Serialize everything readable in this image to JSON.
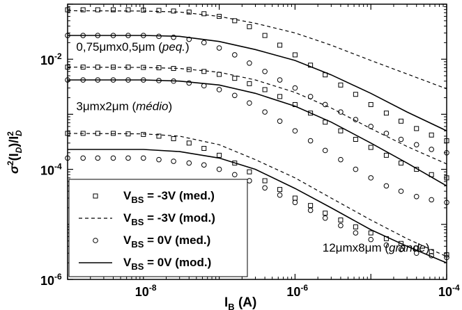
{
  "chart_data": {
    "type": "scatter",
    "xlabel": "I_B (A)",
    "ylabel": "σ²(I_D)/I_D²",
    "x_scale": "log",
    "y_scale": "log",
    "xlim": [
      1e-09,
      0.0001
    ],
    "ylim": [
      1e-06,
      0.1
    ],
    "x_ticks": [
      {
        "value": 1e-08,
        "base": "10",
        "exp": "-8"
      },
      {
        "value": 1e-06,
        "base": "10",
        "exp": "-6"
      },
      {
        "value": 0.0001,
        "base": "10",
        "exp": "-4"
      }
    ],
    "y_ticks": [
      {
        "value": 0.01,
        "base": "10",
        "exp": "-2"
      },
      {
        "value": 0.0001,
        "base": "10",
        "exp": "-4"
      },
      {
        "value": 1e-06,
        "base": "10",
        "exp": "-6"
      }
    ],
    "annotations": [
      {
        "id": "ann-peq",
        "parts": [
          "0,75",
          "μ",
          "mx0,5",
          "μ",
          "m (",
          "peq.",
          ")"
        ],
        "italic_index": 5,
        "x": 1.3e-09,
        "y": 0.0143
      },
      {
        "id": "ann-medio",
        "parts": [
          "3",
          "μ",
          "mx2",
          "μ",
          "m (",
          "médio",
          ")"
        ],
        "italic_index": 5,
        "x": 1.3e-09,
        "y": 0.00118
      },
      {
        "id": "ann-grande",
        "parts": [
          "12",
          "μ",
          "mx8",
          "μ",
          "m (",
          "grande",
          ")"
        ],
        "italic_index": 5,
        "x": 2.3e-06,
        "y": 3.2e-06
      }
    ],
    "legend": {
      "placement": "bottom-left",
      "entries": [
        {
          "marker": "square",
          "line": "none",
          "label_main": "V",
          "label_sub": "BS",
          "label_rest": " = -3V (med.)"
        },
        {
          "marker": "none",
          "line": "dashed",
          "label_main": "V",
          "label_sub": "BS",
          "label_rest": " = -3V (mod.)"
        },
        {
          "marker": "circle",
          "line": "none",
          "label_main": "V",
          "label_sub": "BS",
          "label_rest": " = 0V (med.)"
        },
        {
          "marker": "none",
          "line": "solid",
          "label_main": "V",
          "label_sub": "BS",
          "label_rest": " = 0V (mod.)"
        }
      ]
    },
    "series": [
      {
        "device": "peq",
        "kind": "med",
        "vbs": "-3V",
        "marker": "square",
        "x": [
          1e-09,
          1.6e-09,
          2.5e-09,
          4e-09,
          6.3e-09,
          1e-08,
          1.6e-08,
          2.5e-08,
          4e-08,
          6.3e-08,
          1e-07,
          1.6e-07,
          2.5e-07,
          4e-07,
          6.3e-07,
          1e-06,
          1.6e-06,
          2.5e-06,
          4e-06,
          6.3e-06,
          1e-05,
          1.6e-05,
          2.5e-05,
          4e-05,
          6.3e-05,
          0.0001
        ],
        "y": [
          0.079,
          0.079,
          0.079,
          0.079,
          0.079,
          0.078,
          0.077,
          0.075,
          0.072,
          0.067,
          0.06,
          0.05,
          0.039,
          0.027,
          0.018,
          0.012,
          0.0078,
          0.0052,
          0.0034,
          0.0023,
          0.0015,
          0.00105,
          0.00075,
          0.00055,
          0.00042,
          0.00033
        ]
      },
      {
        "device": "peq",
        "kind": "mod",
        "vbs": "-3V",
        "line": "dashed",
        "x": [
          1e-09,
          1e-08,
          3e-08,
          1e-07,
          3e-07,
          1e-06,
          3e-06,
          1e-05,
          3e-05,
          0.0001
        ],
        "y": [
          0.076,
          0.075,
          0.072,
          0.06,
          0.045,
          0.03,
          0.018,
          0.0095,
          0.0054,
          0.0029
        ]
      },
      {
        "device": "peq",
        "kind": "med",
        "vbs": "0V",
        "marker": "circle",
        "x": [
          1e-09,
          1.6e-09,
          2.5e-09,
          4e-09,
          6.3e-09,
          1e-08,
          1.6e-08,
          2.5e-08,
          4e-08,
          6.3e-08,
          1e-07,
          1.6e-07,
          2.5e-07,
          4e-07,
          6.3e-07,
          1e-06,
          1.6e-06,
          2.5e-06,
          4e-06,
          6.3e-06,
          1e-05,
          1.6e-05,
          2.5e-05,
          4e-05,
          6.3e-05,
          0.0001
        ],
        "y": [
          0.027,
          0.027,
          0.027,
          0.027,
          0.027,
          0.027,
          0.026,
          0.025,
          0.023,
          0.02,
          0.016,
          0.012,
          0.0085,
          0.006,
          0.0042,
          0.003,
          0.0021,
          0.0015,
          0.0011,
          0.0008,
          0.0006,
          0.00045,
          0.00035,
          0.00028,
          0.00023,
          0.0002
        ]
      },
      {
        "device": "peq",
        "kind": "mod",
        "vbs": "0V",
        "line": "solid",
        "x": [
          1e-09,
          1e-08,
          3e-08,
          1e-07,
          3e-07,
          1e-06,
          3e-06,
          1e-05,
          3e-05,
          0.0001
        ],
        "y": [
          0.027,
          0.027,
          0.026,
          0.021,
          0.015,
          0.0095,
          0.0052,
          0.0024,
          0.0011,
          0.0005
        ]
      },
      {
        "device": "medio",
        "kind": "med",
        "vbs": "-3V",
        "marker": "square",
        "x": [
          1e-09,
          1.6e-09,
          2.5e-09,
          4e-09,
          6.3e-09,
          1e-08,
          1.6e-08,
          2.5e-08,
          4e-08,
          6.3e-08,
          1e-07,
          1.6e-07,
          2.5e-07,
          4e-07,
          6.3e-07,
          1e-06,
          1.6e-06,
          2.5e-06,
          4e-06,
          6.3e-06,
          1e-05,
          1.6e-05,
          2.5e-05,
          4e-05,
          6.3e-05,
          0.0001
        ],
        "y": [
          0.0072,
          0.0072,
          0.0072,
          0.0072,
          0.0072,
          0.0071,
          0.007,
          0.0068,
          0.0065,
          0.006,
          0.0053,
          0.0045,
          0.0036,
          0.0028,
          0.0021,
          0.0015,
          0.00105,
          0.00072,
          0.0005,
          0.00035,
          0.00025,
          0.00018,
          0.00013,
          0.0001,
          8e-05,
          7e-05
        ]
      },
      {
        "device": "medio",
        "kind": "mod",
        "vbs": "-3V",
        "line": "dashed",
        "x": [
          1e-09,
          1e-08,
          3e-08,
          1e-07,
          3e-07,
          1e-06,
          3e-06,
          1e-05,
          3e-05,
          0.0001
        ],
        "y": [
          0.0072,
          0.0071,
          0.0068,
          0.0058,
          0.0042,
          0.0025,
          0.0013,
          0.00055,
          0.00026,
          0.000125
        ]
      },
      {
        "device": "medio",
        "kind": "med",
        "vbs": "0V",
        "marker": "circle",
        "x": [
          1e-09,
          1.6e-09,
          2.5e-09,
          4e-09,
          6.3e-09,
          1e-08,
          1.6e-08,
          2.5e-08,
          4e-08,
          6.3e-08,
          1e-07,
          1.6e-07,
          2.5e-07,
          4e-07,
          6.3e-07,
          1e-06,
          1.6e-06,
          2.5e-06,
          4e-06,
          6.3e-06,
          1e-05,
          1.6e-05,
          2.5e-05,
          4e-05,
          6.3e-05,
          0.0001
        ],
        "y": [
          0.0042,
          0.0042,
          0.0042,
          0.0042,
          0.0042,
          0.0042,
          0.0041,
          0.004,
          0.0037,
          0.0033,
          0.0028,
          0.0022,
          0.0016,
          0.0011,
          0.00075,
          0.0005,
          0.00033,
          0.00022,
          0.00015,
          0.0001,
          7e-05,
          5e-05,
          4e-05,
          3.2e-05,
          2.8e-05,
          2.5e-05
        ]
      },
      {
        "device": "medio",
        "kind": "mod",
        "vbs": "0V",
        "line": "solid",
        "x": [
          1e-09,
          1e-08,
          3e-08,
          1e-07,
          3e-07,
          1e-06,
          3e-06,
          1e-05,
          3e-05,
          0.0001
        ],
        "y": [
          0.0042,
          0.0042,
          0.004,
          0.0034,
          0.0024,
          0.0014,
          0.00072,
          0.0003,
          0.00013,
          5e-05
        ]
      },
      {
        "device": "grande",
        "kind": "med",
        "vbs": "-3V",
        "marker": "square",
        "x": [
          1e-09,
          1.6e-09,
          2.5e-09,
          4e-09,
          6.3e-09,
          1e-08,
          1.6e-08,
          2.5e-08,
          4e-08,
          6.3e-08,
          1e-07,
          1.6e-07,
          2.5e-07,
          4e-07,
          6.3e-07,
          1e-06,
          1.6e-06,
          2.5e-06,
          4e-06,
          6.3e-06,
          1e-05,
          1.6e-05,
          2.5e-05,
          4e-05,
          6.3e-05,
          0.0001
        ],
        "y": [
          0.00045,
          0.00045,
          0.00045,
          0.00045,
          0.00044,
          0.00043,
          0.0004,
          0.00036,
          0.0003,
          0.00024,
          0.00018,
          0.00013,
          9e-05,
          6.2e-05,
          4.3e-05,
          3e-05,
          2.2e-05,
          1.6e-05,
          1.2e-05,
          9e-06,
          7e-06,
          5.5e-06,
          4.5e-06,
          3.7e-06,
          3.2e-06,
          2.8e-06
        ]
      },
      {
        "device": "grande",
        "kind": "mod",
        "vbs": "-3V",
        "line": "dashed",
        "x": [
          1e-09,
          1e-08,
          3e-08,
          1e-07,
          3e-07,
          1e-06,
          3e-06,
          1e-05,
          3e-05,
          0.0001
        ],
        "y": [
          0.00045,
          0.00044,
          0.0004,
          0.00028,
          0.00015,
          7e-05,
          3e-05,
          1.2e-05,
          5.5e-06,
          2.6e-06
        ]
      },
      {
        "device": "grande",
        "kind": "med",
        "vbs": "0V",
        "marker": "circle",
        "x": [
          1e-09,
          1.6e-09,
          2.5e-09,
          4e-09,
          6.3e-09,
          1e-08,
          1.6e-08,
          2.5e-08,
          4e-08,
          6.3e-08,
          1e-07,
          1.6e-07,
          2.5e-07,
          4e-07,
          6.3e-07,
          1e-06,
          1.6e-06,
          2.5e-06,
          4e-06,
          6.3e-06,
          1e-05,
          1.6e-05,
          2.5e-05,
          4e-05,
          6.3e-05,
          0.0001
        ],
        "y": [
          0.00016,
          0.00016,
          0.00016,
          0.00016,
          0.00016,
          0.00016,
          0.00015,
          0.00014,
          0.00013,
          0.00012,
          0.0001,
          8e-05,
          6.2e-05,
          4.6e-05,
          3.4e-05,
          2.5e-05,
          1.8e-05,
          1.3e-05,
          9.5e-06,
          7e-06,
          5.3e-06,
          4.2e-06,
          3.5e-06,
          3e-06,
          2.7e-06,
          2.5e-06
        ]
      },
      {
        "device": "grande",
        "kind": "mod",
        "vbs": "0V",
        "line": "solid",
        "x": [
          1e-09,
          1e-08,
          3e-08,
          1e-07,
          3e-07,
          1e-06,
          3e-06,
          1e-05,
          3e-05,
          0.0001
        ],
        "y": [
          0.00023,
          0.00023,
          0.00021,
          0.00016,
          0.0001,
          4.5e-05,
          2e-05,
          8e-06,
          4e-06,
          2e-06
        ]
      }
    ]
  }
}
